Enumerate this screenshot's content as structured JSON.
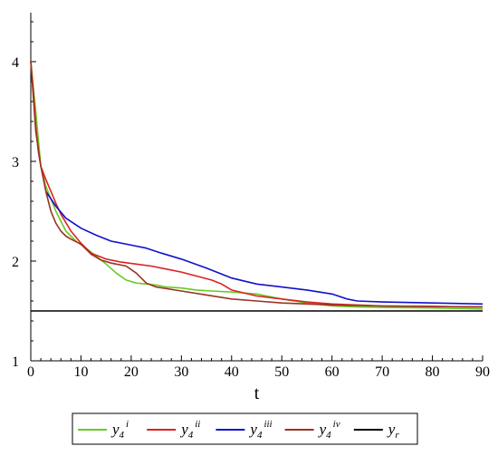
{
  "chart_data": {
    "type": "line",
    "xlabel": "t",
    "ylabel": "",
    "xlim": [
      0,
      90
    ],
    "ylim": [
      1,
      4.5
    ],
    "xticks": [
      0,
      10,
      20,
      30,
      40,
      50,
      60,
      70,
      80,
      90
    ],
    "yticks": [
      1,
      2,
      3,
      4
    ],
    "grid": false,
    "legend_position": "bottom",
    "series": [
      {
        "name": "y4 i",
        "base": "y",
        "sub": "4",
        "sup": "i",
        "color": "#66cc22",
        "x": [
          0,
          1,
          2,
          3,
          5,
          7,
          9,
          11,
          13,
          15,
          17,
          19,
          21,
          23,
          25,
          27,
          30,
          33,
          36,
          40,
          45,
          50,
          55,
          60,
          65,
          70,
          80,
          90
        ],
        "y": [
          4.0,
          3.5,
          2.95,
          2.75,
          2.5,
          2.3,
          2.2,
          2.13,
          2.05,
          1.97,
          1.88,
          1.81,
          1.78,
          1.77,
          1.76,
          1.74,
          1.73,
          1.71,
          1.7,
          1.69,
          1.67,
          1.62,
          1.58,
          1.55,
          1.54,
          1.535,
          1.53,
          1.52
        ]
      },
      {
        "name": "y4 ii",
        "base": "y",
        "sub": "4",
        "sup": "ii",
        "color": "#dd2222",
        "x": [
          0,
          0.5,
          1,
          1.5,
          2,
          3,
          4,
          5,
          6,
          8,
          10,
          12,
          15,
          18,
          21,
          24,
          27,
          30,
          33,
          36,
          38,
          40,
          45,
          50,
          55,
          60,
          65,
          70,
          80,
          90
        ],
        "y": [
          4.0,
          3.7,
          3.35,
          3.1,
          2.95,
          2.82,
          2.7,
          2.58,
          2.47,
          2.3,
          2.18,
          2.08,
          2.02,
          1.99,
          1.97,
          1.95,
          1.92,
          1.89,
          1.85,
          1.81,
          1.77,
          1.71,
          1.65,
          1.62,
          1.59,
          1.57,
          1.56,
          1.55,
          1.545,
          1.54
        ]
      },
      {
        "name": "y4 iii",
        "base": "y",
        "sub": "4",
        "sup": "iii",
        "color": "#1111cc",
        "x": [
          3,
          5,
          7,
          10,
          13,
          16,
          20,
          23,
          26,
          30,
          35,
          40,
          45,
          50,
          55,
          60,
          63,
          65,
          70,
          80,
          90
        ],
        "y": [
          2.7,
          2.55,
          2.43,
          2.33,
          2.26,
          2.2,
          2.16,
          2.13,
          2.08,
          2.02,
          1.93,
          1.83,
          1.77,
          1.74,
          1.71,
          1.67,
          1.62,
          1.6,
          1.59,
          1.58,
          1.57
        ]
      },
      {
        "name": "y4 iv",
        "base": "y",
        "sub": "4",
        "sup": "iv",
        "color": "#993322",
        "x": [
          0,
          1,
          2,
          3,
          4,
          5,
          6,
          7,
          8,
          10,
          12,
          14,
          16,
          18,
          19,
          21,
          23,
          25,
          30,
          35,
          40,
          45,
          50,
          55,
          60,
          70,
          80,
          90
        ],
        "y": [
          4.0,
          3.3,
          2.95,
          2.7,
          2.5,
          2.38,
          2.3,
          2.25,
          2.22,
          2.17,
          2.07,
          2.01,
          1.98,
          1.96,
          1.95,
          1.88,
          1.78,
          1.74,
          1.7,
          1.66,
          1.62,
          1.6,
          1.58,
          1.57,
          1.56,
          1.55,
          1.545,
          1.54
        ]
      },
      {
        "name": "yr",
        "base": "y",
        "sub": "r",
        "sup": "",
        "color": "#000000",
        "x": [
          0,
          90
        ],
        "y": [
          1.5,
          1.5
        ]
      }
    ]
  }
}
